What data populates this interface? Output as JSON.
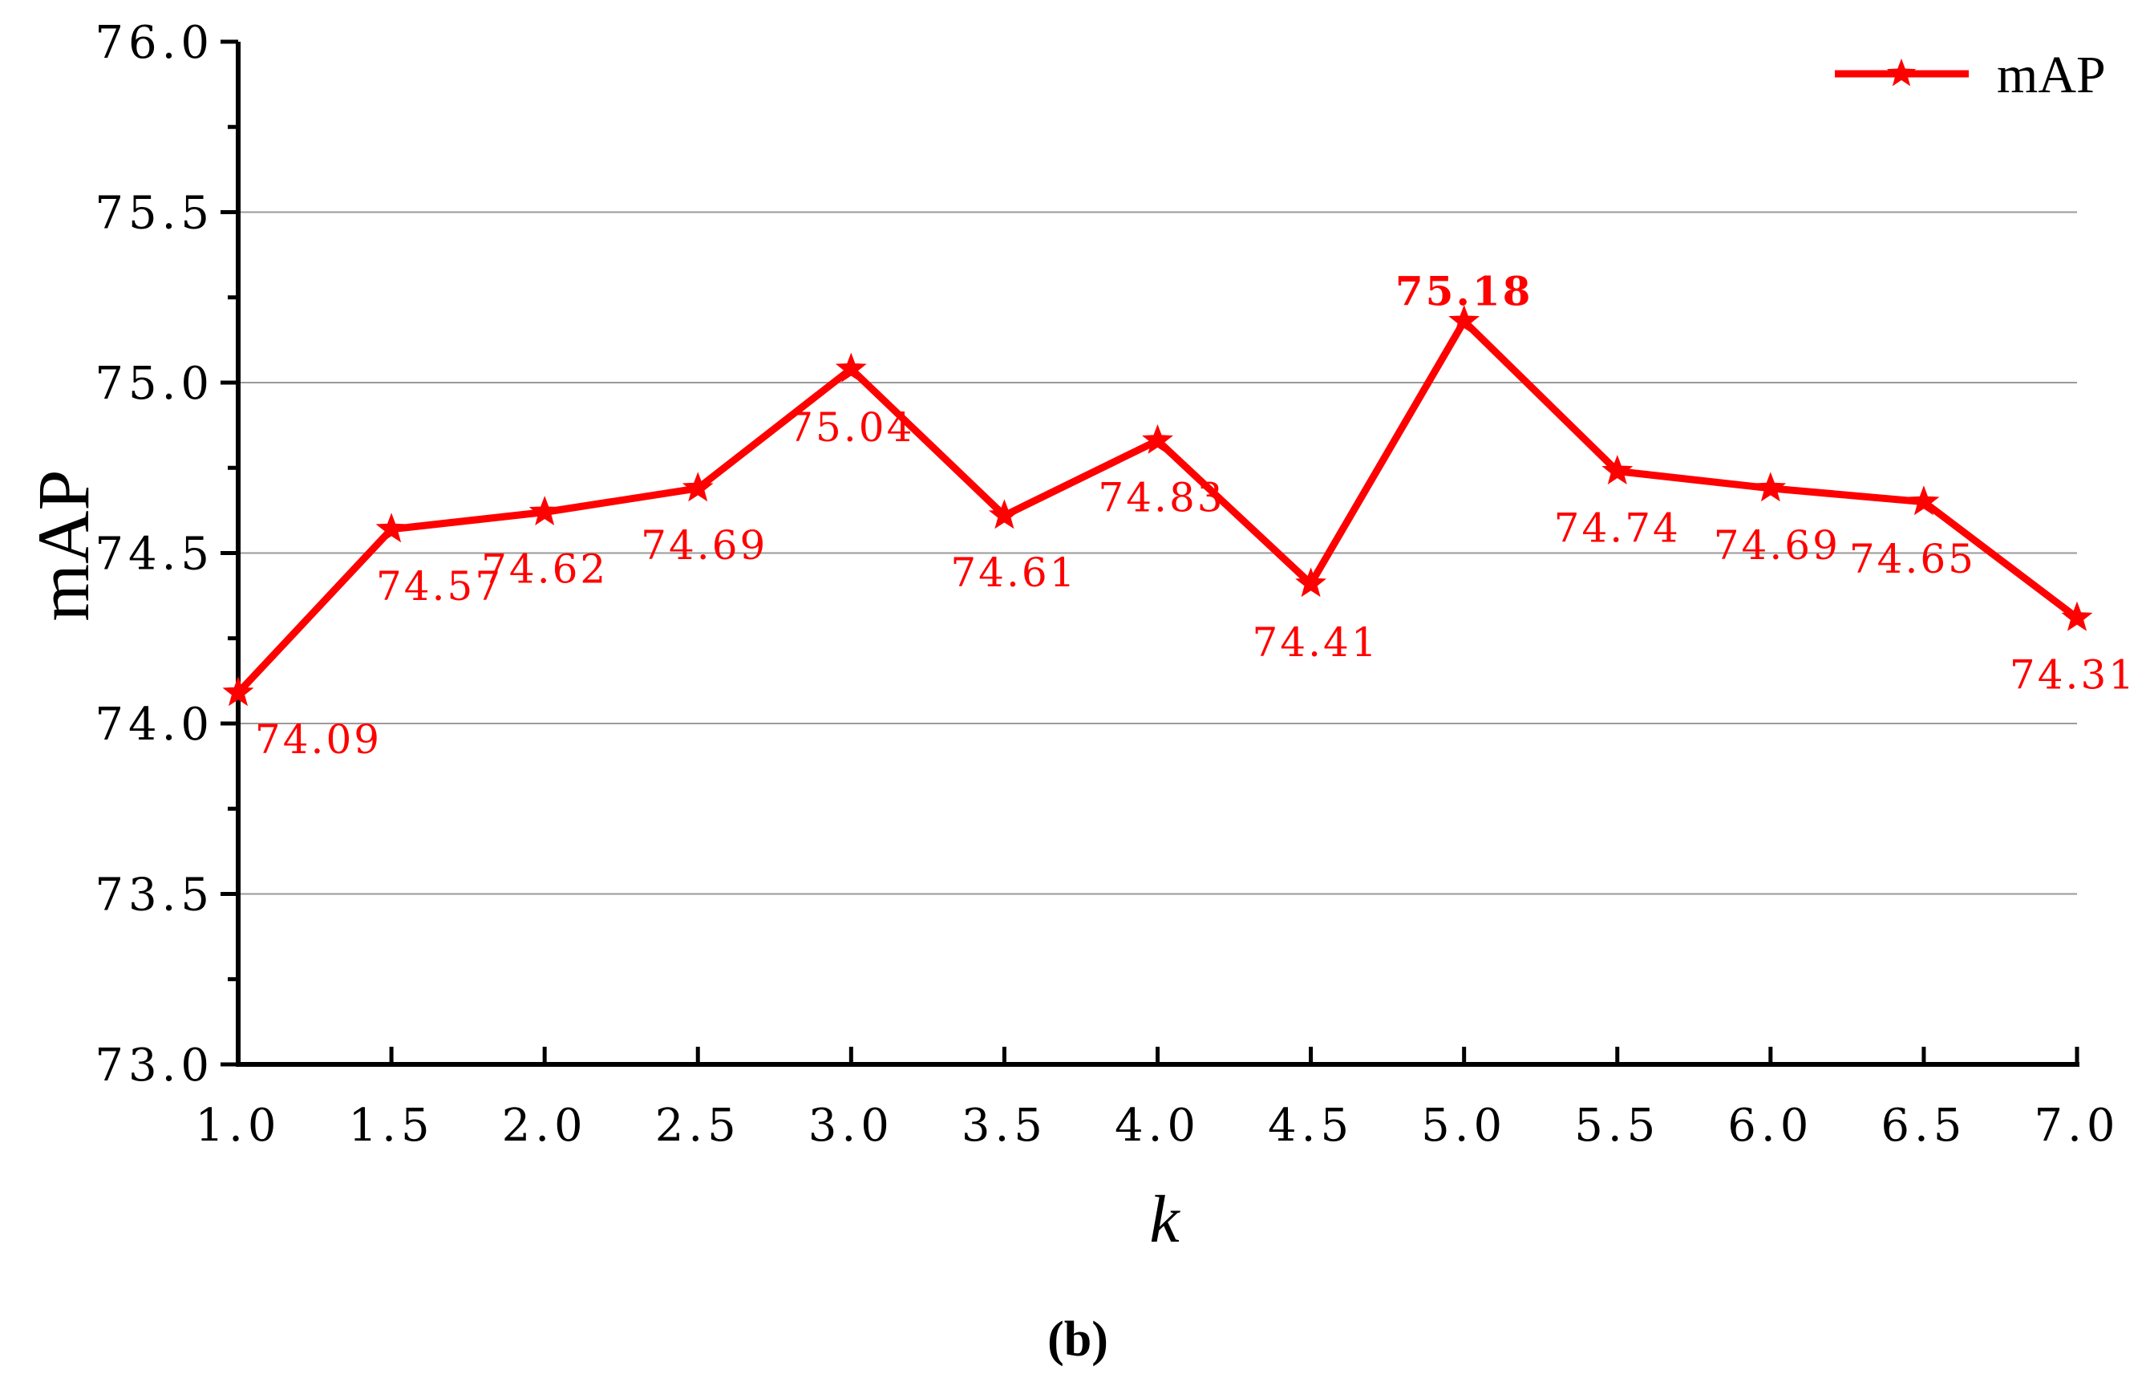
{
  "chart_data": {
    "type": "line",
    "xlabel": "k",
    "ylabel": "mAP",
    "xlim": [
      1.0,
      7.0
    ],
    "ylim": [
      73.0,
      76.0
    ],
    "x_ticks": [
      "1.0",
      "1.5",
      "2.0",
      "2.5",
      "3.0",
      "3.5",
      "4.0",
      "4.5",
      "5.0",
      "5.5",
      "6.0",
      "6.5",
      "7.0"
    ],
    "y_ticks": [
      "73.0",
      "73.5",
      "74.0",
      "74.5",
      "75.0",
      "75.5",
      "76.0"
    ],
    "grid": "horizontal",
    "legend_position": "top-right",
    "series": [
      {
        "name": "mAP",
        "color": "#ff0000",
        "marker": "star",
        "x": [
          1.0,
          1.5,
          2.0,
          2.5,
          3.0,
          3.5,
          4.0,
          4.5,
          5.0,
          5.5,
          6.0,
          6.5,
          7.0
        ],
        "y": [
          74.09,
          74.57,
          74.62,
          74.69,
          75.04,
          74.61,
          74.83,
          74.41,
          75.18,
          74.74,
          74.69,
          74.65,
          74.31
        ],
        "labels": [
          "74.09",
          "74.57",
          "74.62",
          "74.69",
          "75.04",
          "74.61",
          "74.83",
          "74.41",
          "75.18",
          "74.74",
          "74.69",
          "74.65",
          "74.31"
        ],
        "highlighted_label": "75.18"
      }
    ],
    "caption": "(b)"
  }
}
